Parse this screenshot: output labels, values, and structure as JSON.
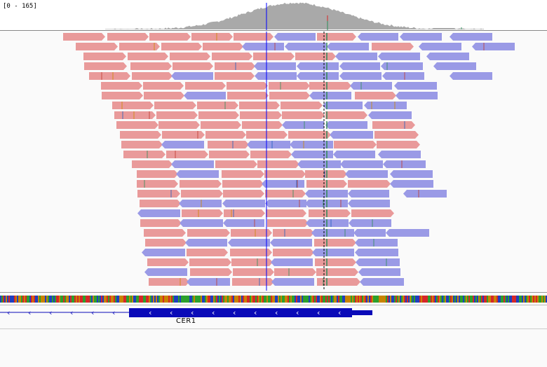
{
  "coverage": {
    "range_label": "[0 - 165]",
    "fill_color": "#a9a9a9",
    "marker_color_primary": "#0000ff",
    "marker_color_secondary": "#000000",
    "snp_colors": [
      "#2e8b57",
      "#d62728"
    ]
  },
  "alignment": {
    "forward_read_color": "#e99a9a",
    "reverse_read_color": "#9a9ae6",
    "mismatch_colors": [
      "#c0392b",
      "#2e8b57",
      "#1f5fbf",
      "#cc8800"
    ]
  },
  "sequence": {
    "base_colors": {
      "A": "#2ca02c",
      "C": "#1f3fbf",
      "G": "#c88400",
      "T": "#d62728"
    }
  },
  "gene": {
    "name": "CER1",
    "color": "#0a0ab8",
    "strand_glyph": "‹"
  }
}
